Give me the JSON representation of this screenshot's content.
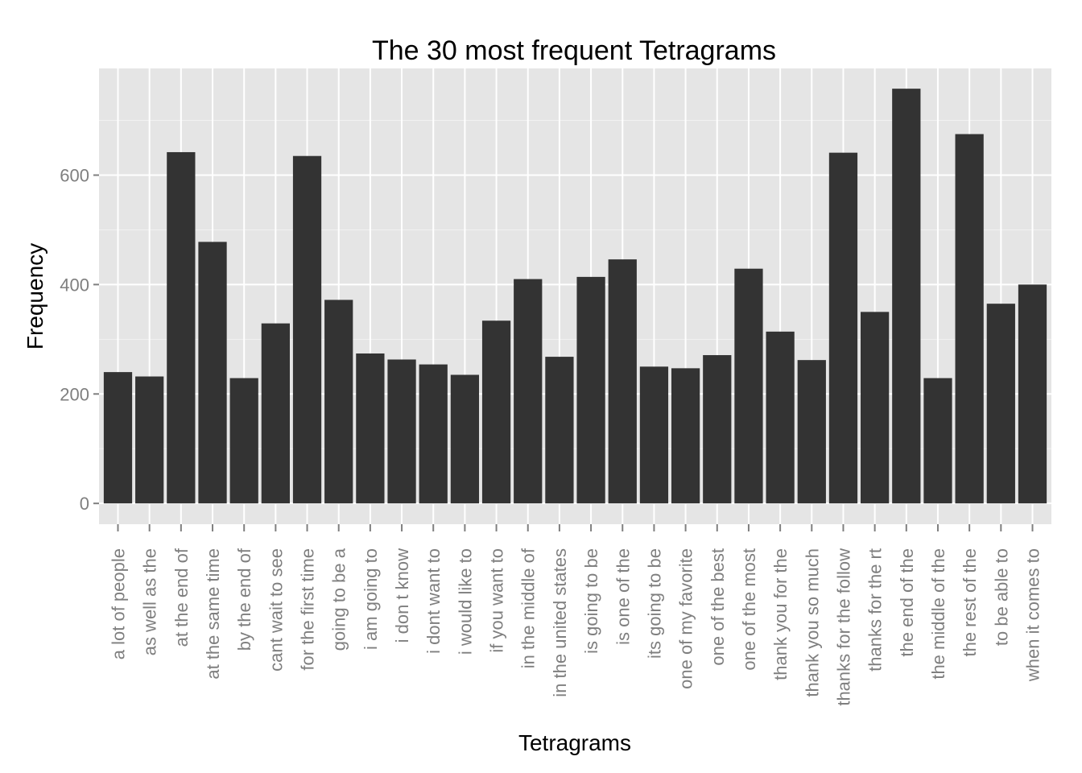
{
  "chart_data": {
    "type": "bar",
    "title": "The 30 most frequent Tetragrams",
    "xlabel": "Tetragrams",
    "ylabel": "Frequency",
    "ylim": [
      -38,
      795
    ],
    "yticks": [
      0,
      200,
      400,
      600
    ],
    "grid": true,
    "legend": "none",
    "categories": [
      "a lot of people",
      "as well as the",
      "at the end of",
      "at the same time",
      "by the end of",
      "cant wait to see",
      "for the first time",
      "going to be a",
      "i am going to",
      "i don t know",
      "i dont want to",
      "i would like to",
      "if you want to",
      "in the middle of",
      "in the united states",
      "is going to be",
      "is one of the",
      "its going to be",
      "one of my favorite",
      "one of the best",
      "one of the most",
      "thank you for the",
      "thank you so much",
      "thanks for the follow",
      "thanks for the rt",
      "the end of the",
      "the middle of the",
      "the rest of the",
      "to be able to",
      "when it comes to"
    ],
    "values": [
      240,
      232,
      642,
      478,
      229,
      329,
      635,
      372,
      274,
      263,
      254,
      235,
      334,
      410,
      268,
      414,
      446,
      250,
      247,
      271,
      429,
      314,
      262,
      641,
      350,
      758,
      229,
      675,
      365,
      400
    ],
    "colors": {
      "bar": "#333333",
      "panel": "#e5e5e5",
      "grid_major": "#ffffff",
      "grid_minor": "#f2f2f2",
      "tick_text": "#7f7f7f",
      "tick_mark": "#7f7f7f"
    }
  }
}
